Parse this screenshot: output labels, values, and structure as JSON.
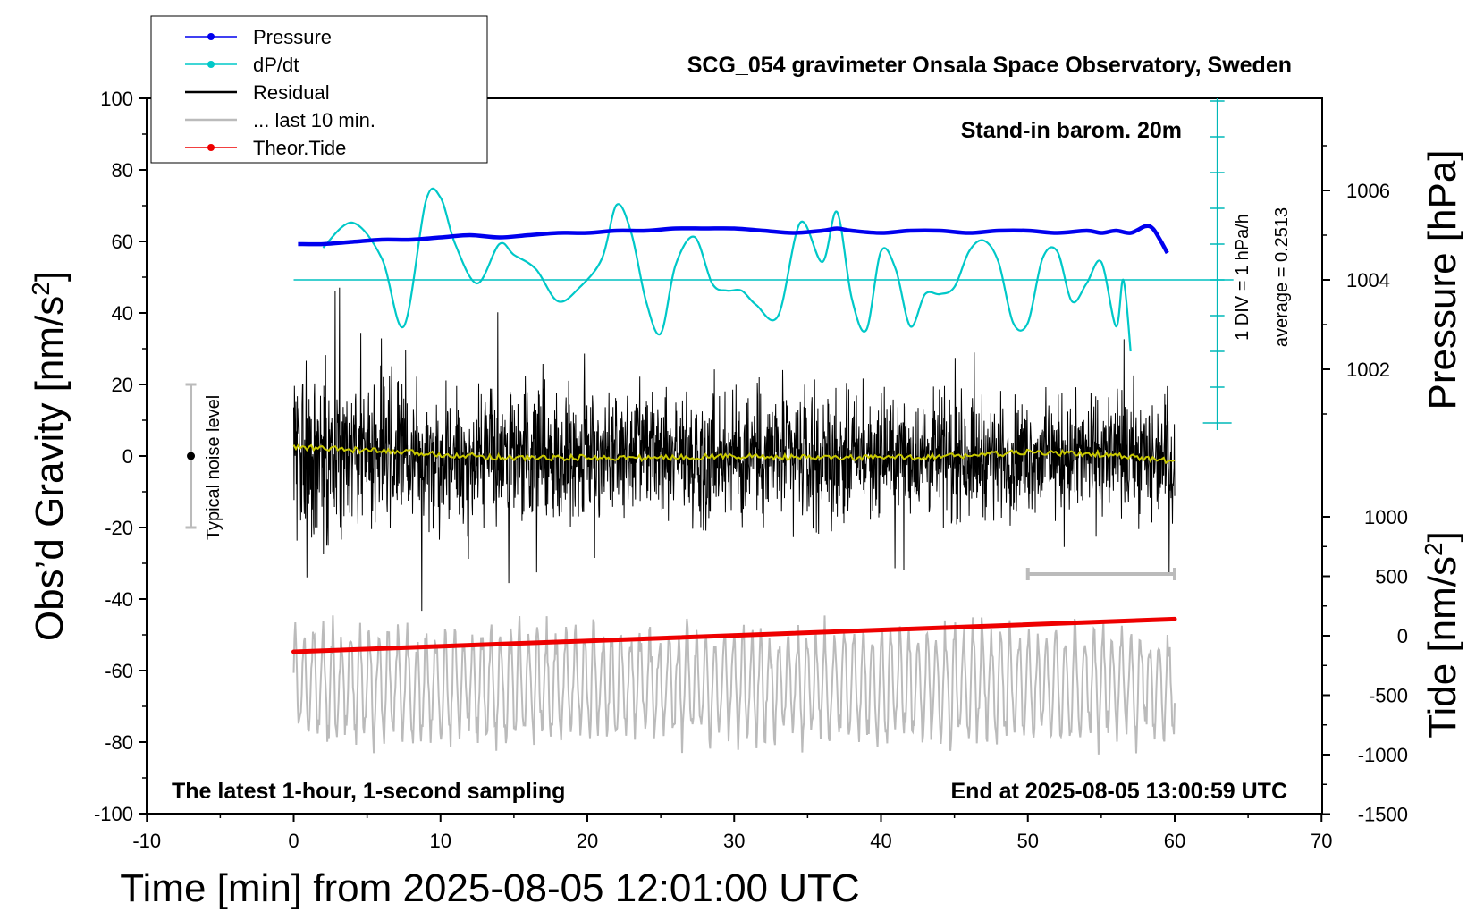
{
  "chart_data": {
    "type": "line",
    "title": "SCG_054 gravimeter Onsala Space Observatory, Sweden",
    "xlabel": "Time [min] from 2025-08-05 12:01:00 UTC",
    "xlim": [
      -10,
      70
    ],
    "x_ticks": [
      "-10",
      "0",
      "10",
      "20",
      "30",
      "40",
      "50",
      "60",
      "70"
    ],
    "left_axis": {
      "label_main": "Obs’d Gravity [nm/s",
      "label_exp": "2",
      "label_end": "]",
      "ylim": [
        -100,
        100
      ],
      "ticks": [
        "100",
        "80",
        "60",
        "40",
        "20",
        "0",
        "-20",
        "-40",
        "-60",
        "-80",
        "-100"
      ]
    },
    "pressure_axis": {
      "label": "Pressure [hPa]",
      "ylim": [
        1000,
        1008
      ],
      "ticks": [
        "1006",
        "1004",
        "1002"
      ]
    },
    "tide_axis": {
      "label_main": "Tide [nm/s",
      "label_exp": "2",
      "label_end": "]",
      "ylim": [
        -1500,
        1000
      ],
      "ticks": [
        "1000",
        "500",
        "0",
        "-500",
        "-1000",
        "-1500"
      ]
    },
    "legend": [
      {
        "name": "Pressure",
        "color": "#0000ee",
        "marker": true
      },
      {
        "name": "dP/dt",
        "color": "#00c8c8",
        "marker": true
      },
      {
        "name": "Residual",
        "color": "#000000",
        "marker": false
      },
      {
        "name": "... last 10 min.",
        "color": "#bbbbbb",
        "marker": false
      },
      {
        "name": "Theor.Tide",
        "color": "#ee0000",
        "marker": true
      }
    ],
    "series": [
      {
        "name": "Pressure",
        "axis": "pressure",
        "color": "#0000ee",
        "x": [
          0.3,
          2,
          4,
          6,
          8,
          10,
          12,
          14,
          16,
          18,
          20,
          22,
          24,
          26,
          28,
          30,
          32,
          34,
          36,
          37,
          38,
          40,
          42,
          44,
          46,
          48,
          50,
          52,
          54,
          55,
          56,
          57,
          58,
          58.5,
          59,
          59.5
        ],
        "y": [
          1004.8,
          1004.8,
          1004.85,
          1004.9,
          1004.9,
          1004.95,
          1005.0,
          1004.95,
          1005.0,
          1005.05,
          1005.05,
          1005.1,
          1005.1,
          1005.15,
          1005.15,
          1005.15,
          1005.1,
          1005.05,
          1005.1,
          1005.15,
          1005.1,
          1005.05,
          1005.1,
          1005.1,
          1005.05,
          1005.1,
          1005.1,
          1005.05,
          1005.1,
          1005.05,
          1005.1,
          1005.05,
          1005.2,
          1005.15,
          1004.9,
          1004.6
        ]
      },
      {
        "name": "dP/dt",
        "axis": "dpdt",
        "color": "#00c8c8",
        "note": "1 DIV = 1 hPa/h, baseline at y=50 on left axis, 1 DIV = 10 gravity units",
        "x": [
          2,
          4,
          6,
          7.5,
          9,
          10,
          11,
          12.5,
          14,
          15,
          16.5,
          18,
          19.5,
          21,
          22,
          23,
          24,
          25,
          26,
          27.3,
          28.5,
          29.5,
          30.5,
          31.5,
          33,
          34.5,
          36,
          37,
          38,
          39,
          40,
          41,
          42,
          43,
          44,
          45,
          46,
          47,
          48,
          49,
          50,
          51,
          52,
          53,
          54,
          55,
          56,
          56.5,
          57
        ],
        "y": [
          0.9,
          1.6,
          0.6,
          -1.3,
          2.2,
          2.3,
          1.0,
          -0.1,
          1.0,
          0.7,
          0.3,
          -0.6,
          -0.2,
          0.6,
          2.1,
          1.3,
          -0.6,
          -1.5,
          0.4,
          1.2,
          -0.1,
          -0.3,
          -0.3,
          -0.7,
          -1.0,
          1.6,
          0.5,
          1.9,
          -0.5,
          -1.4,
          0.8,
          0.3,
          -1.3,
          -0.4,
          -0.4,
          -0.2,
          0.8,
          1.1,
          0.5,
          -1.2,
          -1.2,
          0.6,
          0.8,
          -0.6,
          -0.1,
          0.5,
          -1.3,
          0.0,
          -2.0
        ]
      },
      {
        "name": "Residual",
        "axis": "gravity",
        "color": "#000000",
        "x_range": [
          0,
          60
        ],
        "amplitude_envelope": {
          "x": [
            0,
            5,
            10,
            15,
            20,
            25,
            30,
            35,
            40,
            45,
            50,
            55,
            60
          ],
          "y": [
            30,
            24,
            22,
            22,
            21,
            19,
            22,
            22,
            18,
            20,
            18,
            20,
            20
          ]
        }
      },
      {
        "name": "Smoothed residual",
        "axis": "gravity",
        "color": "#c8c800",
        "x": [
          0,
          5,
          10,
          15,
          20,
          25,
          30,
          35,
          40,
          45,
          50,
          55,
          60
        ],
        "y": [
          2.5,
          1.5,
          0.5,
          -0.5,
          -0.5,
          -0.5,
          0,
          -0.5,
          -0.5,
          0,
          1,
          0.5,
          -1.5
        ]
      },
      {
        "name": "... last 10 min.",
        "axis": "gravity",
        "color": "#bbbbbb",
        "x_range": [
          0,
          60
        ],
        "center": -64,
        "amplitude": 16
      },
      {
        "name": "Theor.Tide",
        "axis": "tide",
        "color": "#ee0000",
        "x": [
          0,
          60
        ],
        "y": [
          -135,
          140
        ]
      }
    ],
    "annotations": {
      "stand_in": "Stand-in barom. 20m",
      "div_note": "1 DIV = 1 hPa/h",
      "average_note": "average = 0.2513",
      "noise_note": "Typical noise level",
      "latest_note": "The latest 1-hour, 1-second sampling",
      "end_note": "End at 2025-08-05 13:00:59 UTC"
    }
  }
}
